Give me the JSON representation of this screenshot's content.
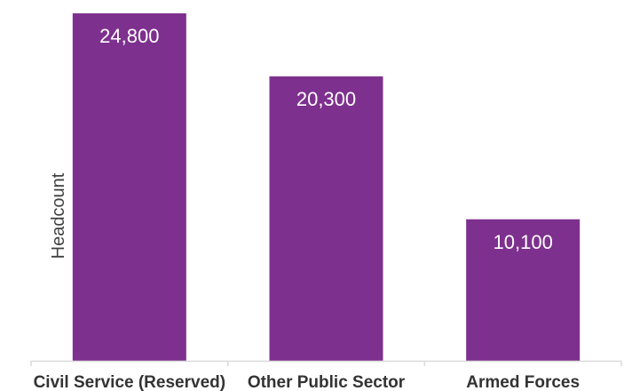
{
  "chart_data": {
    "type": "bar",
    "categories": [
      "Civil Service (Reserved)",
      "Other Public Sector",
      "Armed Forces"
    ],
    "values": [
      24800,
      20300,
      10100
    ],
    "data_labels": [
      "24,800",
      "20,300",
      "10,100"
    ],
    "title": "",
    "xlabel": "",
    "ylabel": "Headcount",
    "ylim": [
      0,
      24800
    ],
    "grid": false,
    "legend": "none",
    "bar_color": "#7E308E",
    "axis_color": "#D9D9D9"
  }
}
